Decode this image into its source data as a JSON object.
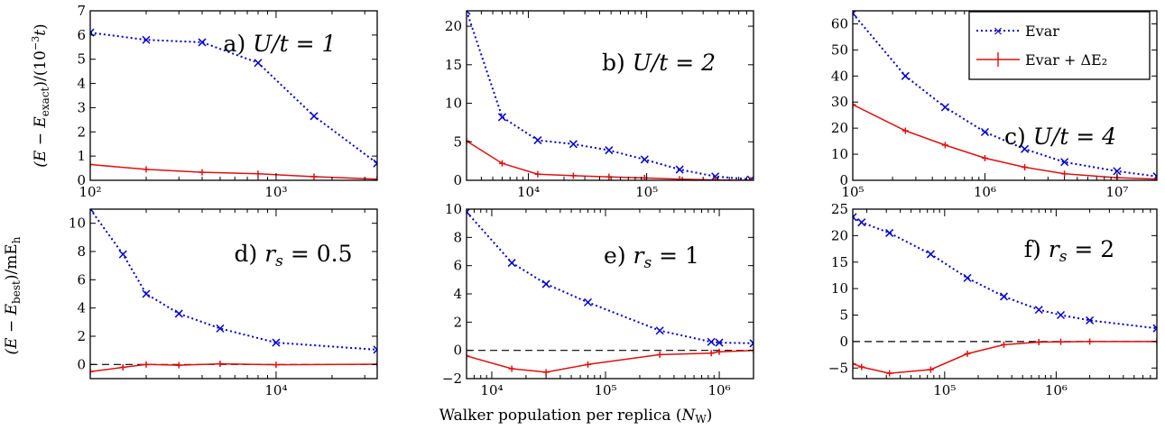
{
  "figure": {
    "ylabel_top": "(E − E_exact)/(10⁻³t)",
    "ylabel_bottom": "(E − E_best)/mE_h",
    "xlabel": "Walker population per replica (N_W)"
  },
  "legend": {
    "items": [
      {
        "label": "Evar",
        "style": "dotted",
        "color": "#0000cc"
      },
      {
        "label": "Evar + ΔE₂",
        "style": "solid",
        "color": "#dd1111"
      }
    ]
  },
  "chart_data": [
    {
      "type": "line",
      "panel": "a",
      "label": "a) U/t = 1",
      "xscale": "log",
      "xlim": [
        100,
        3500
      ],
      "ylim": [
        0,
        7
      ],
      "yticks": [
        0,
        1,
        2,
        3,
        4,
        5,
        6,
        7
      ],
      "xticks": [
        {
          "v": 100,
          "t": "10²"
        },
        {
          "v": 1000,
          "t": "10³"
        }
      ],
      "minor_xticks": [
        200,
        300,
        400,
        500,
        600,
        700,
        800,
        900,
        2000,
        3000
      ],
      "series": [
        {
          "name": "Evar",
          "x": [
            100,
            200,
            400,
            800,
            1600,
            3500
          ],
          "y": [
            6.1,
            5.8,
            5.7,
            4.85,
            2.65,
            0.7
          ]
        },
        {
          "name": "Evar + ΔE₂",
          "x": [
            100,
            200,
            400,
            800,
            1600,
            3500
          ],
          "y": [
            0.65,
            0.45,
            0.33,
            0.27,
            0.15,
            0.05
          ]
        }
      ]
    },
    {
      "type": "line",
      "panel": "b",
      "label": "b) U/t = 2",
      "xscale": "log",
      "xlim": [
        3000,
        800000
      ],
      "ylim": [
        0,
        22
      ],
      "yticks": [
        0,
        5,
        10,
        15,
        20
      ],
      "xticks": [
        {
          "v": 10000,
          "t": "10⁴"
        },
        {
          "v": 100000,
          "t": "10⁵"
        }
      ],
      "minor_xticks": [
        4000,
        5000,
        6000,
        7000,
        8000,
        9000,
        20000,
        30000,
        40000,
        50000,
        60000,
        70000,
        80000,
        90000,
        200000,
        300000,
        400000,
        500000,
        600000,
        700000
      ],
      "series": [
        {
          "name": "Evar",
          "x": [
            3000,
            6000,
            12000,
            24000,
            48000,
            96000,
            190000,
            380000,
            760000
          ],
          "y": [
            22,
            8.2,
            5.2,
            4.7,
            3.9,
            2.7,
            1.4,
            0.5,
            0.1
          ]
        },
        {
          "name": "Evar + ΔE₂",
          "x": [
            3000,
            6000,
            12000,
            24000,
            48000,
            96000,
            190000,
            380000,
            760000
          ],
          "y": [
            5.1,
            2.2,
            0.8,
            0.6,
            0.45,
            0.3,
            0.15,
            0.05,
            0.0
          ]
        }
      ]
    },
    {
      "type": "line",
      "panel": "c",
      "label": "c) U/t = 4",
      "xscale": "log",
      "xlim": [
        100000,
        20000000
      ],
      "ylim": [
        0,
        65
      ],
      "yticks": [
        0,
        10,
        20,
        30,
        40,
        50,
        60
      ],
      "xticks": [
        {
          "v": 100000,
          "t": "10⁵"
        },
        {
          "v": 1000000,
          "t": "10⁶"
        },
        {
          "v": 10000000,
          "t": "10⁷"
        }
      ],
      "minor_xticks": [
        200000,
        300000,
        400000,
        500000,
        600000,
        700000,
        800000,
        900000,
        2000000,
        3000000,
        4000000,
        5000000,
        6000000,
        7000000,
        8000000,
        9000000
      ],
      "series": [
        {
          "name": "Evar",
          "x": [
            100000,
            250000,
            500000,
            1000000,
            2000000,
            4000000,
            10000000,
            20000000
          ],
          "y": [
            64,
            40,
            28,
            18.5,
            12,
            7,
            3.5,
            1.5
          ]
        },
        {
          "name": "Evar + ΔE₂",
          "x": [
            100000,
            250000,
            500000,
            1000000,
            2000000,
            4000000,
            10000000,
            20000000
          ],
          "y": [
            29,
            19,
            13.5,
            8.5,
            5,
            2.5,
            1.0,
            0.5
          ]
        }
      ]
    },
    {
      "type": "line",
      "panel": "d",
      "label": "d) r_s = 0.5",
      "xscale": "log",
      "xlim": [
        1000,
        35000
      ],
      "ylim": [
        -1,
        11
      ],
      "yticks": [
        0,
        2,
        4,
        6,
        8,
        10
      ],
      "zero_line": true,
      "xticks": [
        {
          "v": 10000,
          "t": "10⁴"
        }
      ],
      "minor_xticks": [
        2000,
        3000,
        4000,
        5000,
        6000,
        7000,
        8000,
        9000,
        20000,
        30000
      ],
      "series": [
        {
          "name": "Evar",
          "x": [
            1000,
            1500,
            2000,
            3000,
            5000,
            10000,
            35000
          ],
          "y": [
            11,
            7.8,
            5.0,
            3.6,
            2.55,
            1.55,
            1.05
          ]
        },
        {
          "name": "Evar + ΔE₂",
          "x": [
            1000,
            1500,
            2000,
            3000,
            5000,
            10000,
            35000
          ],
          "y": [
            -0.5,
            -0.2,
            0.0,
            -0.05,
            0.05,
            -0.02,
            0.02
          ]
        }
      ]
    },
    {
      "type": "line",
      "panel": "e",
      "label": "e) r_s = 1",
      "xscale": "log",
      "xlim": [
        6000,
        2000000
      ],
      "ylim": [
        -2,
        10
      ],
      "yticks": [
        -2,
        0,
        2,
        4,
        6,
        8,
        10
      ],
      "zero_line": true,
      "xticks": [
        {
          "v": 10000,
          "t": "10⁴"
        },
        {
          "v": 100000,
          "t": "10⁵"
        },
        {
          "v": 1000000,
          "t": "10⁶"
        }
      ],
      "minor_xticks": [
        7000,
        8000,
        9000,
        20000,
        30000,
        40000,
        50000,
        60000,
        70000,
        80000,
        90000,
        200000,
        300000,
        400000,
        500000,
        600000,
        700000,
        800000,
        900000
      ],
      "series": [
        {
          "name": "Evar",
          "x": [
            6000,
            15000,
            30000,
            70000,
            300000,
            850000,
            1000000,
            2000000
          ],
          "y": [
            9.8,
            6.2,
            4.7,
            3.4,
            1.4,
            0.6,
            0.55,
            0.5
          ]
        },
        {
          "name": "Evar + ΔE₂",
          "x": [
            6000,
            15000,
            30000,
            70000,
            300000,
            850000,
            1000000,
            2000000
          ],
          "y": [
            -0.4,
            -1.3,
            -1.55,
            -1.0,
            -0.3,
            -0.2,
            -0.1,
            0.0
          ]
        }
      ]
    },
    {
      "type": "line",
      "panel": "f",
      "label": "f) r_s = 2",
      "xscale": "log",
      "xlim": [
        15000,
        8000000
      ],
      "ylim": [
        -7,
        25
      ],
      "yticks": [
        -5,
        0,
        5,
        10,
        15,
        20,
        25
      ],
      "zero_line": true,
      "xticks": [
        {
          "v": 100000,
          "t": "10⁵"
        },
        {
          "v": 1000000,
          "t": "10⁶"
        }
      ],
      "minor_xticks": [
        20000,
        30000,
        40000,
        50000,
        60000,
        70000,
        80000,
        90000,
        200000,
        300000,
        400000,
        500000,
        600000,
        700000,
        800000,
        900000,
        2000000,
        3000000,
        4000000,
        5000000,
        6000000,
        7000000
      ],
      "series": [
        {
          "name": "Evar",
          "x": [
            15000,
            18000,
            32000,
            75000,
            160000,
            340000,
            700000,
            1100000,
            2000000,
            8000000
          ],
          "y": [
            23.5,
            22.5,
            20.5,
            16.5,
            12.0,
            8.5,
            6.0,
            5.0,
            4.0,
            2.5
          ]
        },
        {
          "name": "Evar + ΔE₂",
          "x": [
            15000,
            18000,
            32000,
            75000,
            160000,
            340000,
            700000,
            1100000,
            2000000,
            8000000
          ],
          "y": [
            -4.2,
            -4.8,
            -6.0,
            -5.3,
            -2.3,
            -0.6,
            -0.1,
            -0.05,
            0.0,
            0.0
          ]
        }
      ]
    }
  ]
}
